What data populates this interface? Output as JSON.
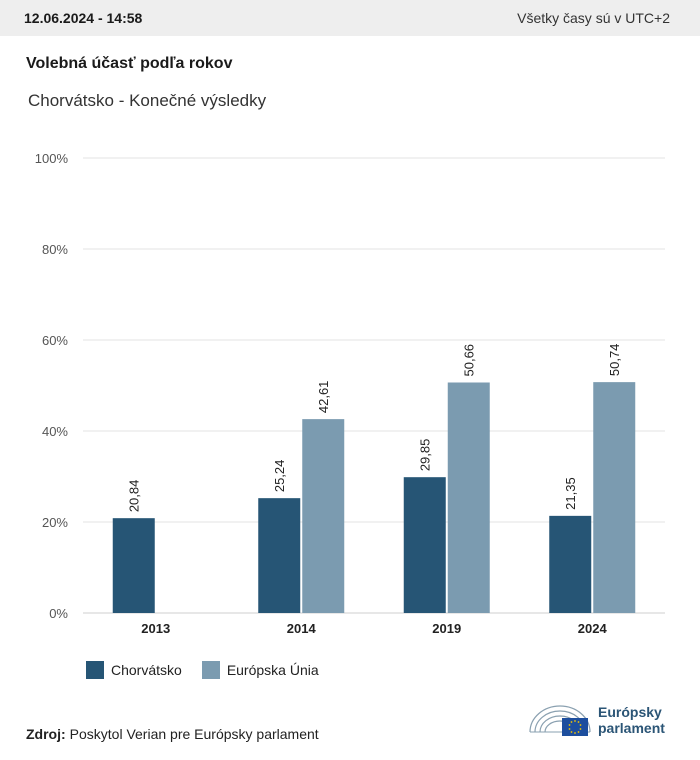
{
  "header": {
    "timestamp": "12.06.2024 - 14:58",
    "timezone_note": "Všetky časy sú v UTC+2"
  },
  "title": "Volebná účasť podľa rokov",
  "subtitle": "Chorvátsko - Konečné výsledky",
  "colors": {
    "croatia": "#265575",
    "eu": "#7b9bb0",
    "grid": "#e3e3e3",
    "axis": "#cfcfcf",
    "topbar": "#eeeeee"
  },
  "chart_data": {
    "type": "bar",
    "categories": [
      "2013",
      "2014",
      "2019",
      "2024"
    ],
    "series": [
      {
        "name": "Chorvátsko",
        "values": [
          20.84,
          25.24,
          29.85,
          21.35
        ],
        "labels": [
          "20,84",
          "25,24",
          "29,85",
          "21,35"
        ]
      },
      {
        "name": "Európska Únia",
        "values": [
          null,
          42.61,
          50.66,
          50.74
        ],
        "labels": [
          null,
          "42,61",
          "50,66",
          "50,74"
        ]
      }
    ],
    "yticks": [
      "0%",
      "20%",
      "40%",
      "60%",
      "80%",
      "100%"
    ],
    "ylim": [
      0,
      100
    ],
    "grid": true,
    "legend_position": "bottom-left"
  },
  "legend": {
    "croatia": "Chorvátsko",
    "eu": "Európska Únia"
  },
  "source": {
    "label": "Zdroj:",
    "text": "Poskytol Verian pre Európsky parlament"
  },
  "logo": {
    "line1": "Európsky",
    "line2": "parlament"
  }
}
